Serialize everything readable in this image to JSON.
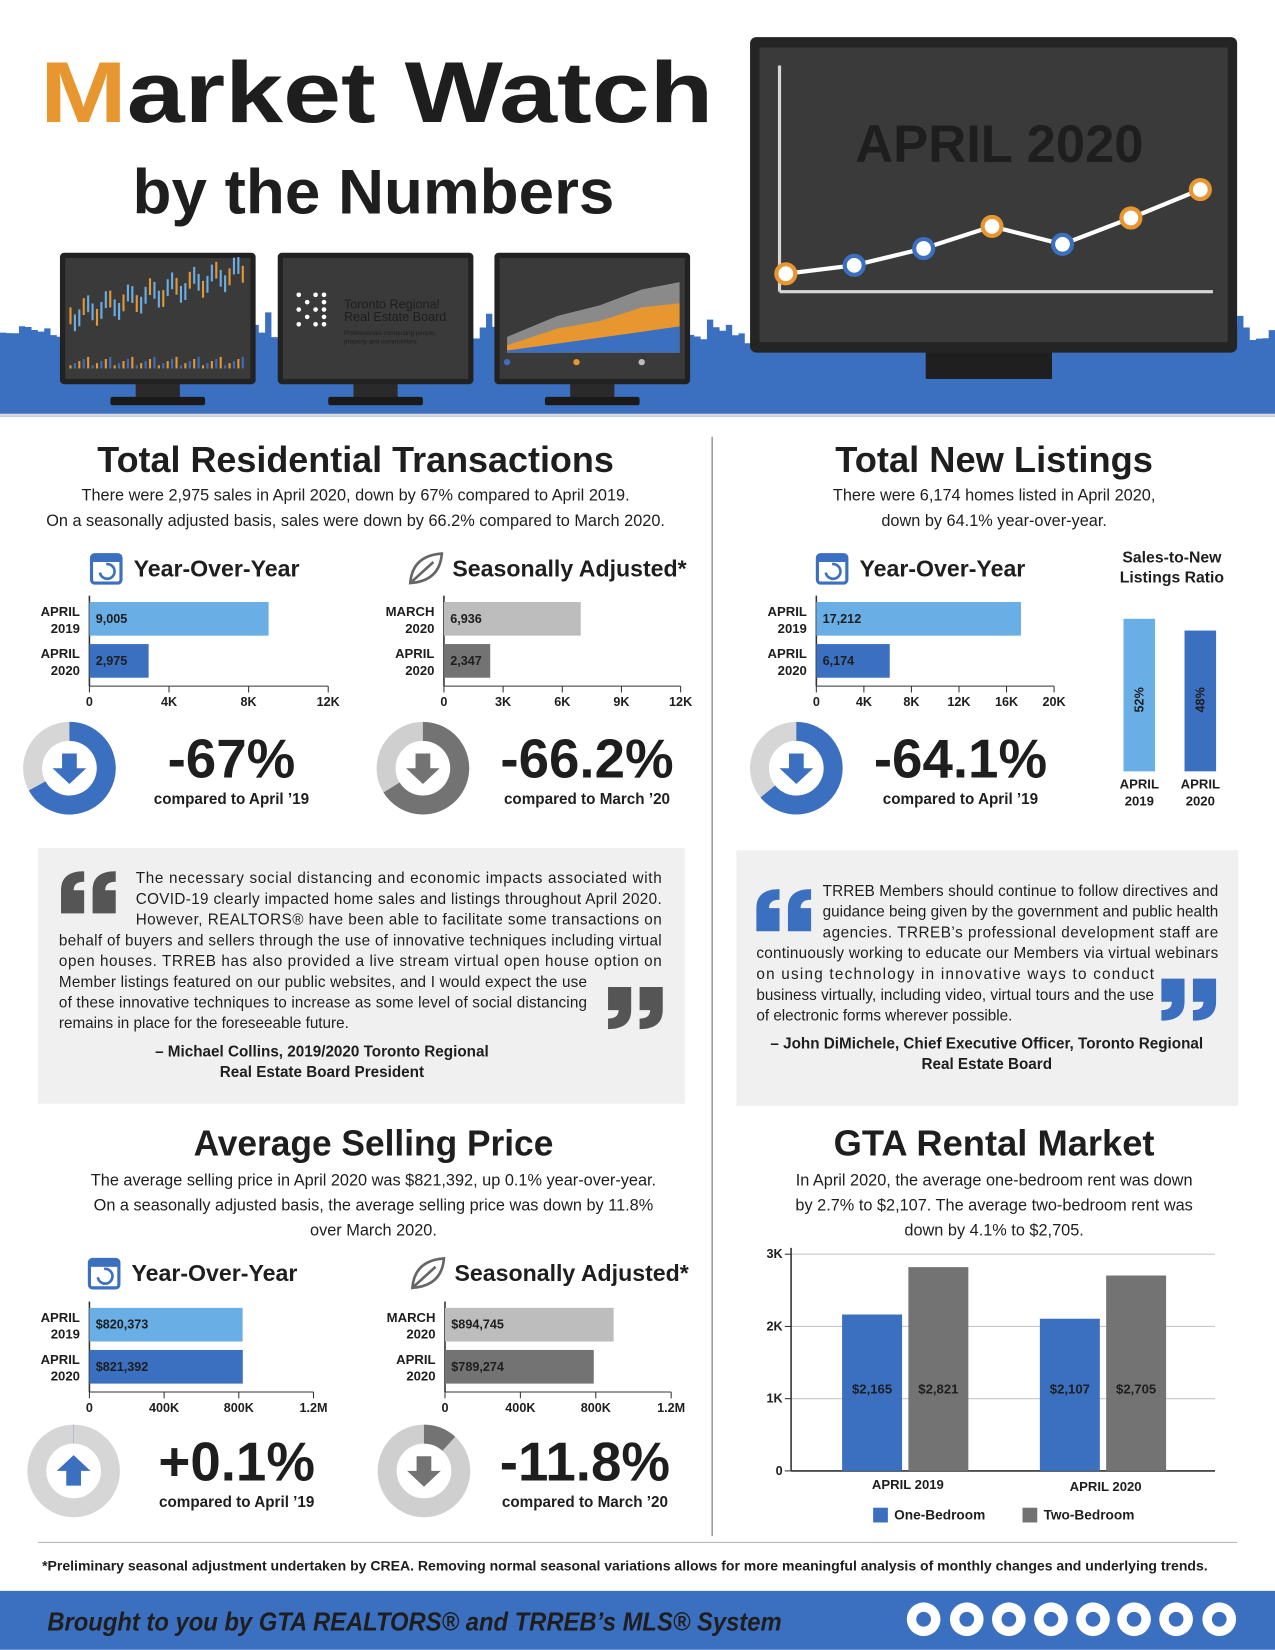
{
  "header": {
    "title": "Market Watch",
    "subtitle": "by the Numbers",
    "date": "APRIL 2020",
    "logo_name": [
      "Toronto Regional",
      "Real Estate Board"
    ],
    "logo_tagline": [
      "Professionals connecting people,",
      "property and communities."
    ]
  },
  "sections": [
    {
      "heading": "Total Residential Transactions",
      "description": [
        "There were 2,975 sales in April 2020, down by 67% compared to April 2019.",
        "On a seasonally adjusted basis, sales were down by 66.2% compared to March 2020."
      ]
    },
    {
      "heading": "Total New Listings",
      "description": [
        "There were 6,174 homes listed in April 2020,",
        "down by 64.1% year-over-year."
      ]
    },
    {
      "heading": "Average Selling Price",
      "description": [
        "The average selling price in April 2020 was $821,392, up 0.1% year-over-year.",
        "On a seasonally adjusted basis, the average selling price was down by 11.8%",
        "over March 2020."
      ]
    },
    {
      "heading": "GTA Rental Market",
      "description": [
        "In April 2020, the average one-bedroom rent was down",
        "by 2.7% to $2,107.  The average two-bedroom rent was",
        "down by 4.1% to $2,705."
      ]
    }
  ],
  "quotes": [
    {
      "lines": [
        "The necessary social distancing and economic impacts associated with",
        "COVID-19 clearly impacted home sales and listings throughout April 2020.",
        "However, REALTORS® have been able to facilitate some transactions on",
        "behalf of buyers and sellers through the use of innovative techniques including virtual",
        "open houses. TRREB has also provided a live stream virtual open house option on",
        "Member listings featured on our public websites, and I would expect the use",
        "of these innovative techniques to increase as some level of social distancing",
        "remains in place for the foreseeable future."
      ],
      "attribution": [
        "– Michael Collins, 2019/2020 Toronto Regional",
        "Real Estate Board President"
      ]
    },
    {
      "lines": [
        "TRREB Members should continue to follow directives and",
        "guidance being given by the government and public health",
        "agencies. TRREB’s professional development staff are",
        "continuously working to educate our Members via virtual webinars",
        "on using technology in innovative ways to conduct",
        "business virtually, including video, virtual tours and the use",
        "of electronic forms wherever possible."
      ],
      "attribution": [
        "– John DiMichele, Chief Executive Officer, Toronto Regional",
        "Real Estate Board"
      ]
    }
  ],
  "footnote": "*Preliminary seasonal adjustment undertaken by CREA. Removing normal seasonal variations allows for more meaningful analysis of monthly changes and underlying trends.",
  "banner": "Brought to you by GTA REALTORS® and TRREB’s MLS® System",
  "chart_data": [
    {
      "type": "hbar",
      "title": "Year-Over-Year",
      "categories": [
        [
          "APRIL",
          "2019"
        ],
        [
          "APRIL",
          "2020"
        ]
      ],
      "values": [
        9005,
        2975
      ],
      "value_labels": [
        "9,005",
        "2,975"
      ],
      "colors": [
        "#6aaee6",
        "#3b6fc0"
      ],
      "xlim": [
        0,
        12000
      ],
      "xticks": [
        0,
        {
          "value": 4000,
          "label": "4K"
        },
        {
          "value": 8000,
          "label": "8K"
        },
        {
          "value": 12000,
          "label": "12K"
        }
      ]
    },
    {
      "type": "hbar",
      "title": "Seasonally Adjusted*",
      "categories": [
        [
          "MARCH",
          "2020"
        ],
        [
          "APRIL",
          "2020"
        ]
      ],
      "values": [
        6936,
        2347
      ],
      "value_labels": [
        "6,936",
        "2,347"
      ],
      "colors": [
        "#bdbdbd",
        "#737373"
      ],
      "xlim": [
        0,
        12000
      ],
      "xticks": [
        0,
        {
          "value": 3000,
          "label": "3K"
        },
        {
          "value": 6000,
          "label": "6K"
        },
        {
          "value": 9000,
          "label": "9K"
        },
        {
          "value": 12000,
          "label": "12K"
        }
      ]
    },
    {
      "type": "hbar",
      "title": "Year-Over-Year",
      "categories": [
        [
          "APRIL",
          "2019"
        ],
        [
          "APRIL",
          "2020"
        ]
      ],
      "values": [
        17212,
        6174
      ],
      "value_labels": [
        "17,212",
        "6,174"
      ],
      "colors": [
        "#6aaee6",
        "#3b6fc0"
      ],
      "xlim": [
        0,
        20000
      ],
      "xticks": [
        0,
        {
          "value": 4000,
          "label": "4K"
        },
        {
          "value": 8000,
          "label": "8K"
        },
        {
          "value": 12000,
          "label": "12K"
        },
        {
          "value": 16000,
          "label": "16K"
        },
        {
          "value": 20000,
          "label": "20K"
        }
      ]
    },
    {
      "type": "vbar",
      "title": [
        "Sales-to-New",
        "Listings Ratio"
      ],
      "categories": [
        [
          "APRIL",
          "2019"
        ],
        [
          "APRIL",
          "2020"
        ]
      ],
      "values": [
        52,
        48
      ],
      "value_labels": [
        "52%",
        "48%"
      ],
      "colors": [
        "#6aaee6",
        "#3b6fc0"
      ]
    },
    {
      "type": "hbar",
      "title": "Year-Over-Year",
      "categories": [
        [
          "APRIL",
          "2019"
        ],
        [
          "APRIL",
          "2020"
        ]
      ],
      "values": [
        820373,
        821392
      ],
      "value_labels": [
        "$820,373",
        "$821,392"
      ],
      "colors": [
        "#6aaee6",
        "#3b6fc0"
      ],
      "xlim": [
        0,
        1200000
      ],
      "xticks": [
        0,
        {
          "value": 400000,
          "label": "400K"
        },
        {
          "value": 800000,
          "label": "800K"
        },
        {
          "value": 1200000,
          "label": "1.2M"
        }
      ]
    },
    {
      "type": "hbar",
      "title": "Seasonally Adjusted*",
      "categories": [
        [
          "MARCH",
          "2020"
        ],
        [
          "APRIL",
          "2020"
        ]
      ],
      "values": [
        894745,
        789274
      ],
      "value_labels": [
        "$894,745",
        "$789,274"
      ],
      "colors": [
        "#bdbdbd",
        "#737373"
      ],
      "xlim": [
        0,
        1200000
      ],
      "xticks": [
        0,
        {
          "value": 400000,
          "label": "400K"
        },
        {
          "value": 800000,
          "label": "800K"
        },
        {
          "value": 1200000,
          "label": "1.2M"
        }
      ]
    },
    {
      "type": "grouped_bar",
      "categories": [
        "APRIL 2019",
        "APRIL 2020"
      ],
      "series": [
        {
          "name": "One-Bedroom",
          "color": "#3b6fc0",
          "values": [
            2165,
            2107
          ],
          "value_labels": [
            "$2,165",
            "$2,107"
          ]
        },
        {
          "name": "Two-Bedroom",
          "color": "#737373",
          "values": [
            2821,
            2705
          ],
          "value_labels": [
            "$2,821",
            "$2,705"
          ]
        }
      ],
      "ylim": [
        0,
        3000
      ],
      "yticks": [
        0,
        {
          "value": 1000,
          "label": "1K"
        },
        {
          "value": 2000,
          "label": "2K"
        },
        {
          "value": 3000,
          "label": "3K"
        }
      ],
      "grid": true
    },
    {
      "type": "donut",
      "values": [
        -67
      ],
      "value_labels": [
        "-67%"
      ],
      "caption": "compared to April ’19",
      "color": "#3b6fc0"
    },
    {
      "type": "donut",
      "values": [
        -66.2
      ],
      "value_labels": [
        "-66.2%"
      ],
      "caption": "compared to March ’20",
      "color": "#737373"
    },
    {
      "type": "donut",
      "values": [
        -64.1
      ],
      "value_labels": [
        "-64.1%"
      ],
      "caption": "compared to April ’19",
      "color": "#3b6fc0"
    },
    {
      "type": "donut",
      "values": [
        0.1
      ],
      "value_labels": [
        "+0.1%"
      ],
      "caption": "compared to April ’19",
      "color": "#3b6fc0"
    },
    {
      "type": "donut",
      "values": [
        -11.8
      ],
      "value_labels": [
        "-11.8%"
      ],
      "caption": "compared to March ’20",
      "color": "#737373"
    }
  ]
}
